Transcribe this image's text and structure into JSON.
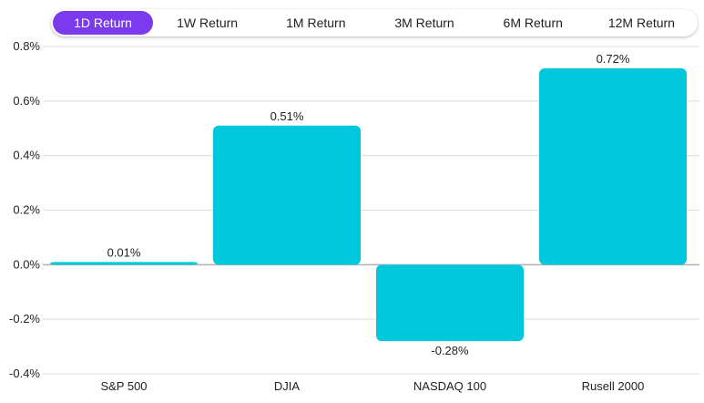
{
  "tabs": [
    {
      "label": "1D Return",
      "active": true
    },
    {
      "label": "1W Return",
      "active": false
    },
    {
      "label": "1M Return",
      "active": false
    },
    {
      "label": "3M Return",
      "active": false
    },
    {
      "label": "6M Return",
      "active": false
    },
    {
      "label": "12M Return",
      "active": false
    }
  ],
  "colors": {
    "accent": "#7c3aed",
    "bar": "#00c8dc",
    "grid": "#dcdcdc",
    "zero_line": "#b0b0b0"
  },
  "chart_data": {
    "type": "bar",
    "categories": [
      "S&P 500",
      "DJIA",
      "NASDAQ 100",
      "Rusell 2000"
    ],
    "values": [
      0.01,
      0.51,
      -0.28,
      0.72
    ],
    "data_labels": [
      "0.01%",
      "0.51%",
      "-0.28%",
      "0.72%"
    ],
    "yticks": [
      -0.4,
      -0.2,
      0.0,
      0.2,
      0.4,
      0.6,
      0.8
    ],
    "ytick_labels": [
      "-0.4%",
      "-0.2%",
      "0.0%",
      "0.2%",
      "0.4%",
      "0.6%",
      "0.8%"
    ],
    "ylim": [
      -0.4,
      0.8
    ],
    "grid": true
  }
}
